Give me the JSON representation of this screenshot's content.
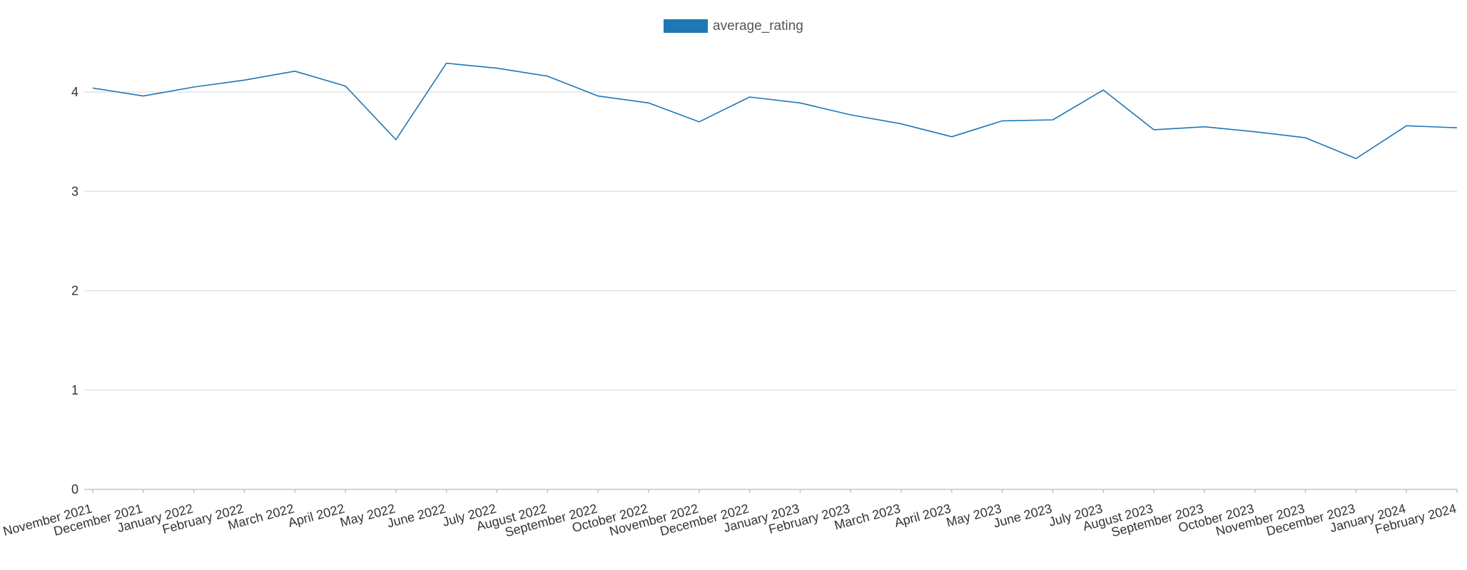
{
  "chart_data": {
    "type": "line",
    "title": "",
    "xlabel": "",
    "ylabel": "",
    "ylim": [
      0,
      4.6
    ],
    "yticks": [
      0,
      1,
      2,
      3,
      4
    ],
    "grid": true,
    "legend_position": "top-center",
    "categories": [
      "November 2021",
      "December 2021",
      "January 2022",
      "February 2022",
      "March 2022",
      "April 2022",
      "May 2022",
      "June 2022",
      "July 2022",
      "August 2022",
      "September 2022",
      "October 2022",
      "November 2022",
      "December 2022",
      "January 2023",
      "February 2023",
      "March 2023",
      "April 2023",
      "May 2023",
      "June 2023",
      "July 2023",
      "August 2023",
      "September 2023",
      "October 2023",
      "November 2023",
      "December 2023",
      "January 2024",
      "February 2024"
    ],
    "series": [
      {
        "name": "average_rating",
        "color": "#1f77b4",
        "values": [
          4.04,
          3.96,
          4.05,
          4.12,
          4.21,
          4.06,
          3.52,
          4.29,
          4.24,
          4.16,
          3.96,
          3.89,
          3.7,
          3.95,
          3.89,
          3.77,
          3.68,
          3.55,
          3.71,
          3.72,
          4.02,
          3.62,
          3.65,
          3.6,
          3.54,
          3.33,
          3.66,
          3.64
        ]
      }
    ]
  }
}
